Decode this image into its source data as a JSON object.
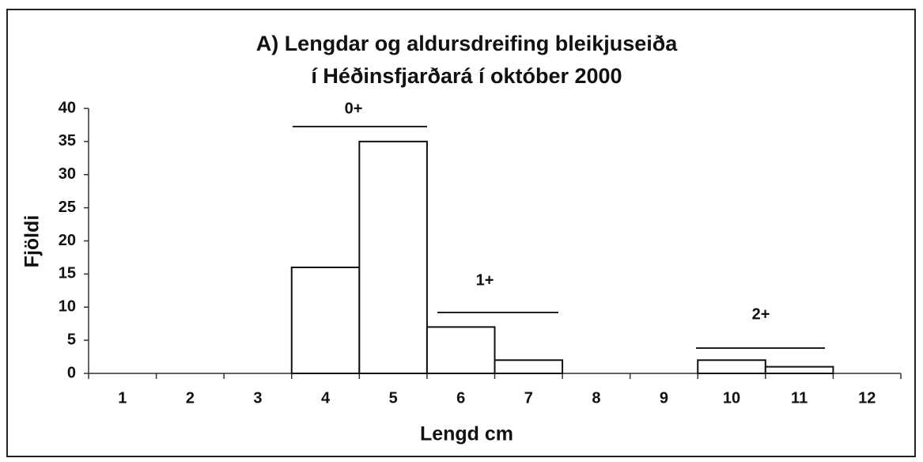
{
  "chart_data": {
    "type": "bar",
    "title": [
      "A) Lengdar og aldursdreifing bleikjuseiða",
      "í Héðinsfjarðará í október 2000"
    ],
    "xlabel": "Lengd cm",
    "ylabel": "Fjöldi",
    "categories": [
      "1",
      "2",
      "3",
      "4",
      "5",
      "6",
      "7",
      "8",
      "9",
      "10",
      "11",
      "12"
    ],
    "values": [
      0,
      0,
      0,
      16,
      35,
      7,
      2,
      0,
      0,
      2,
      1,
      0
    ],
    "color": "#ffffff",
    "ylim": [
      0,
      40
    ],
    "yticks": [
      0,
      5,
      10,
      15,
      20,
      25,
      30,
      35,
      40
    ],
    "grid": false,
    "annotations": [
      "0+",
      "1+",
      "2+"
    ]
  }
}
